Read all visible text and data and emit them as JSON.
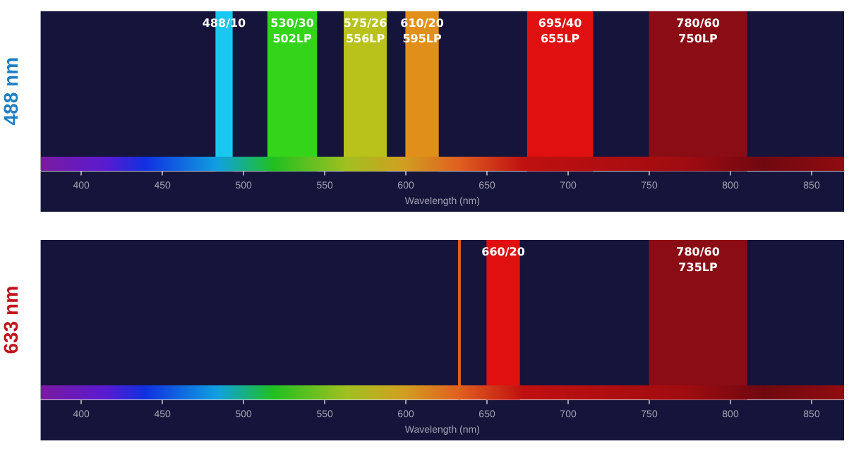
{
  "chart_data": [
    {
      "type": "bar",
      "orientation": "horizontal",
      "categories": [
        null
      ],
      "xlabel": "Wavelength (nm)",
      "ylabel": "488 nm",
      "xlim": [
        375,
        870
      ],
      "xticks": [
        400,
        450,
        500,
        550,
        600,
        650,
        700,
        750,
        800,
        850
      ],
      "series": [
        {
          "name": "488/10",
          "color": "#19c8f0",
          "base": [
            483
          ],
          "values": [
            10
          ]
        },
        {
          "name": "530/30 502LP",
          "color": "#33d41a",
          "base": [
            515
          ],
          "values": [
            30
          ]
        },
        {
          "name": "575/26 556LP",
          "color": "#b8c21a",
          "base": [
            562
          ],
          "values": [
            26
          ]
        },
        {
          "name": "610/20 595LP",
          "color": "#e0901a",
          "base": [
            600
          ],
          "values": [
            20
          ]
        },
        {
          "name": "695/40 655LP",
          "color": "#e01010",
          "base": [
            675
          ],
          "values": [
            40
          ]
        },
        {
          "name": "780/60 750LP",
          "color": "#8a0c14",
          "base": [
            750
          ],
          "values": [
            60
          ]
        }
      ]
    },
    {
      "type": "bar",
      "orientation": "horizontal",
      "categories": [
        null
      ],
      "xlabel": "Wavelength (nm)",
      "ylabel": "633 nm",
      "xlim": [
        375,
        870
      ],
      "xticks": [
        400,
        450,
        500,
        550,
        600,
        650,
        700,
        750,
        800,
        850
      ],
      "ref_lines": [
        {
          "axis": "x",
          "value": 633,
          "color": "#e06010"
        }
      ],
      "series": [
        {
          "name": "660/20",
          "color": "#e01010",
          "base": [
            650
          ],
          "values": [
            20
          ]
        },
        {
          "name": "780/60 735LP",
          "color": "#8a0c14",
          "base": [
            750
          ],
          "values": [
            60
          ]
        }
      ]
    }
  ]
}
